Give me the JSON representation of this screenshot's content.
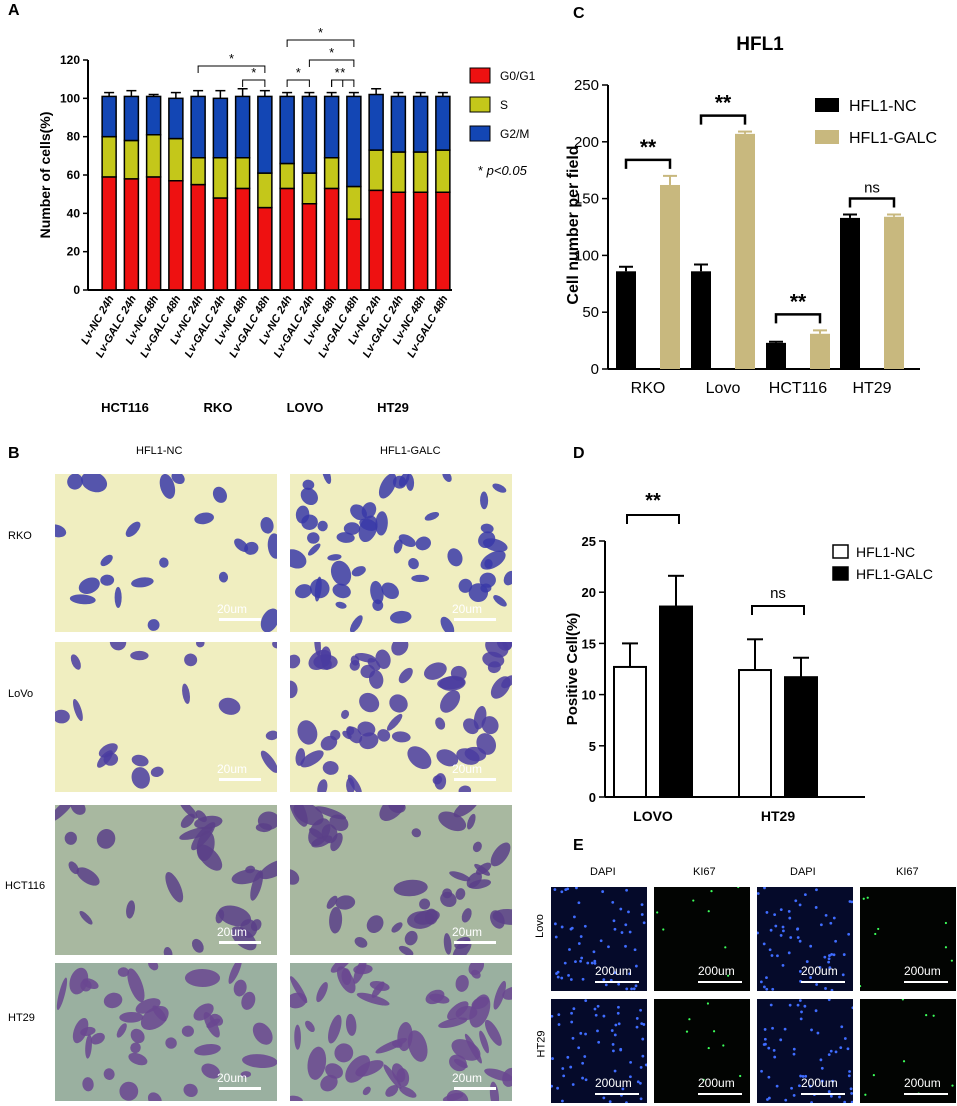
{
  "panels": {
    "A": "A",
    "B": "B",
    "C": "C",
    "D": "D",
    "E": "E"
  },
  "chart_data": [
    {
      "type": "bar",
      "panel": "A",
      "stacked": true,
      "ylabel": "Number of cells(%)",
      "ylim": [
        0,
        120
      ],
      "yticks": [
        0,
        20,
        40,
        60,
        80,
        100,
        120
      ],
      "categories": [
        "Lv-NC 24h",
        "Lv-GALC 24h",
        "Lv-NC 48h",
        "Lv-GALC 48h",
        "Lv-NC 24h",
        "Lv-GALC 24h",
        "Lv-NC 48h",
        "Lv-GALC 48h",
        "Lv-NC 24h",
        "Lv-GALC 24h",
        "Lv-NC 48h",
        "Lv-GALC 48h",
        "Lv-NC 24h",
        "Lv-GALC 24h",
        "Lv-NC 48h",
        "Lv-GALC 48h"
      ],
      "groups": [
        "HCT116",
        "RKO",
        "LOVO",
        "HT29"
      ],
      "series": [
        {
          "name": "G0/G1",
          "color": "#ee1111",
          "values": [
            59,
            58,
            59,
            57,
            55,
            48,
            53,
            43,
            53,
            45,
            53,
            37,
            52,
            51,
            51,
            51
          ]
        },
        {
          "name": "S",
          "color": "#c4c71a",
          "values": [
            21,
            20,
            22,
            22,
            14,
            21,
            16,
            18,
            13,
            16,
            16,
            17,
            21,
            21,
            21,
            22
          ]
        },
        {
          "name": "G2/M",
          "color": "#1346b4",
          "values": [
            21,
            23,
            20,
            21,
            32,
            31,
            32,
            40,
            35,
            40,
            32,
            47,
            29,
            29,
            29,
            28
          ]
        }
      ],
      "errors": [
        2,
        3,
        1,
        3,
        3,
        4,
        4,
        3,
        2,
        2,
        2,
        2,
        3,
        2,
        2,
        2
      ],
      "significance": "* p<0.05",
      "sig_mark": "*",
      "sig_note": "p<0.05"
    },
    {
      "type": "bar",
      "panel": "C",
      "title": "HFL1",
      "ylabel": "Cell number per field",
      "ylim": [
        0,
        250
      ],
      "yticks": [
        0,
        50,
        100,
        150,
        200,
        250
      ],
      "categories": [
        "RKO",
        "Lovo",
        "HCT116",
        "HT29"
      ],
      "series": [
        {
          "name": "HFL1-NC",
          "color": "#000000",
          "values": [
            86,
            86,
            23,
            133
          ],
          "errors": [
            4,
            6,
            1,
            3
          ]
        },
        {
          "name": "HFL1-GALC",
          "color": "#c8b87e",
          "values": [
            162,
            207,
            31,
            134
          ],
          "errors": [
            8,
            2,
            3,
            2
          ]
        }
      ],
      "annotations": [
        "**",
        "**",
        "**",
        "ns"
      ]
    },
    {
      "type": "bar",
      "panel": "D",
      "ylabel": "Positive Cell(%)",
      "ylim": [
        0,
        25
      ],
      "yticks": [
        0,
        5,
        10,
        15,
        20,
        25
      ],
      "categories": [
        "LOVO",
        "HT29"
      ],
      "series": [
        {
          "name": "HFL1-NC",
          "color": "#ffffff",
          "values": [
            12.7,
            12.4
          ],
          "errors": [
            2.3,
            3.0
          ]
        },
        {
          "name": "HFL1-GALC",
          "color": "#000000",
          "values": [
            18.6,
            11.7
          ],
          "errors": [
            3.0,
            1.9
          ]
        }
      ],
      "annotations": [
        "**",
        "ns"
      ]
    }
  ],
  "panelB": {
    "columns": [
      "HFL1-NC",
      "HFL1-GALC"
    ],
    "rows": [
      "RKO",
      "LoVo",
      "HCT116",
      "HT29"
    ],
    "scale": "20um"
  },
  "panelE": {
    "columns": [
      "DAPI",
      "KI67",
      "DAPI",
      "KI67"
    ],
    "rows": [
      "Lovo",
      "HT29"
    ],
    "scale": "200um"
  }
}
